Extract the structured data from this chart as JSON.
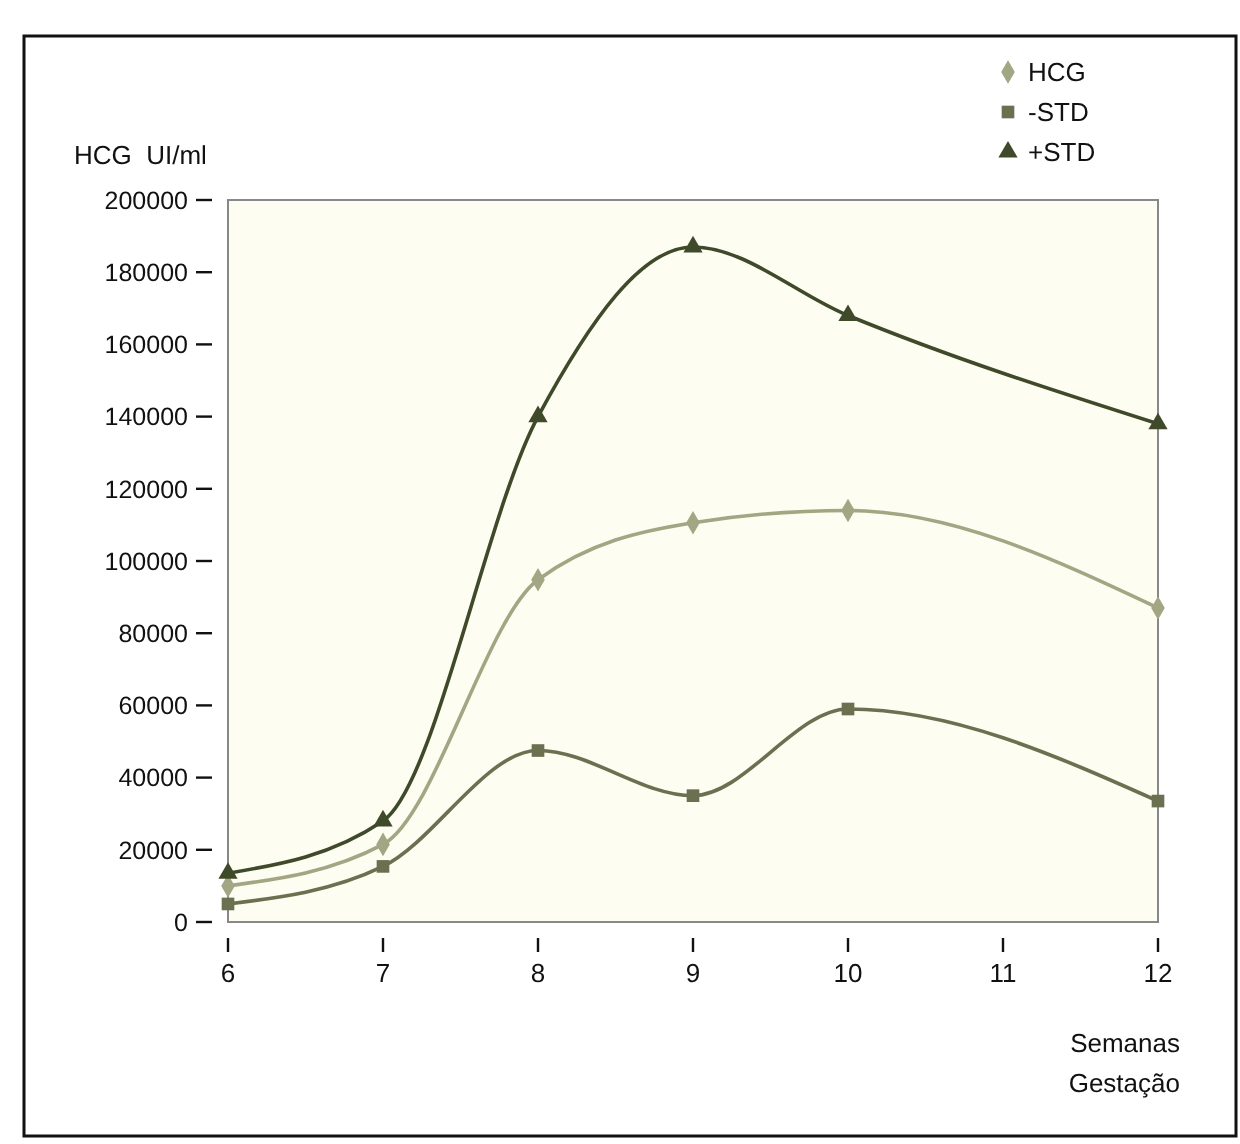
{
  "chart_data": {
    "type": "line",
    "ylabel": "HCG  UI/ml",
    "xlabel": "Semanas Gestação",
    "x": [
      6,
      7,
      8,
      9,
      10,
      12
    ],
    "series": [
      {
        "name": "HCG",
        "color": "#a3a682",
        "marker": "diamond",
        "values": [
          10000,
          21500,
          94800,
          110600,
          114000,
          87000
        ]
      },
      {
        "name": "-STD",
        "color": "#6b7150",
        "marker": "square",
        "values": [
          5000,
          15400,
          47500,
          35000,
          59000,
          33500
        ]
      },
      {
        "name": "+STD",
        "color": "#3f4a2a",
        "marker": "triangle",
        "values": [
          13500,
          28000,
          140000,
          187000,
          168000,
          138000
        ]
      }
    ],
    "xlim": [
      6,
      12
    ],
    "xticks": [
      6,
      7,
      8,
      9,
      10,
      11,
      12
    ],
    "ylim": [
      0,
      200000
    ],
    "yticks": [
      0,
      20000,
      40000,
      60000,
      80000,
      100000,
      120000,
      140000,
      160000,
      180000,
      200000
    ],
    "grid": false,
    "legend": "top right",
    "line_style": "solid"
  }
}
